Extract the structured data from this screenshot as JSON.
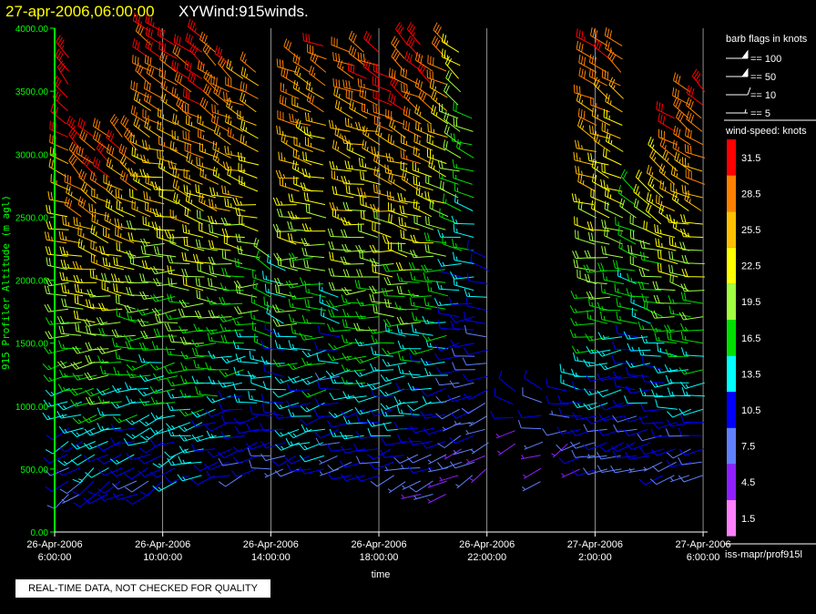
{
  "header": {
    "datetime": "27-apr-2006,06:00:00",
    "product": "XYWind:915winds.",
    "datetime_color": "#ffff00",
    "product_color": "#ffffff"
  },
  "footer": {
    "disclaimer": "REAL-TIME DATA, NOT CHECKED FOR QUALITY",
    "source": "iss-mapr/prof915l"
  },
  "colors": {
    "background": "#000000",
    "axis": "#00ff00",
    "ylabel": "#00ff00",
    "gridline": "#cccccc"
  },
  "chart_data": {
    "type": "wind-barb",
    "xlabel": "time",
    "ylabel": "915 Profiler Altitude (m agl)",
    "ylim": [
      0,
      4000
    ],
    "yticks": [
      "0.00",
      "500.00",
      "1000.00",
      "1500.00",
      "2000.00",
      "2500.00",
      "3000.00",
      "3500.00",
      "4000.00"
    ],
    "xlim": [
      "2006-04-26 06:00",
      "2006-04-27 06:10"
    ],
    "xticks": [
      {
        "date": "26-Apr-2006",
        "time": "6:00:00"
      },
      {
        "date": "26-Apr-2006",
        "time": "10:00:00"
      },
      {
        "date": "26-Apr-2006",
        "time": "14:00:00"
      },
      {
        "date": "26-Apr-2006",
        "time": "18:00:00"
      },
      {
        "date": "26-Apr-2006",
        "time": "22:00:00"
      },
      {
        "date": "27-Apr-2006",
        "time": "2:00:00"
      },
      {
        "date": "27-Apr-2006",
        "time": "6:00:00"
      }
    ],
    "grid": "vertical at time ticks",
    "barb_legend": {
      "title": "barb flags in knots",
      "entries": [
        "== 100",
        "== 50",
        "== 10",
        "== 5"
      ]
    },
    "colorbar": {
      "title": "wind-speed: knots",
      "bands": [
        {
          "label": "31.5",
          "color": "#ff0000"
        },
        {
          "label": "28.5",
          "color": "#ff8000"
        },
        {
          "label": "25.5",
          "color": "#ffc000"
        },
        {
          "label": "22.5",
          "color": "#ffff00"
        },
        {
          "label": "19.5",
          "color": "#a0ff40"
        },
        {
          "label": "16.5",
          "color": "#00e000"
        },
        {
          "label": "13.5",
          "color": "#00ffff"
        },
        {
          "label": "10.5",
          "color": "#0000ff"
        },
        {
          "label": "7.5",
          "color": "#6080ff"
        },
        {
          "label": "4.5",
          "color": "#9020ff"
        },
        {
          "label": "1.5",
          "color": "#ff80ff"
        }
      ]
    },
    "profiles": [
      {
        "t": "2006-04-26 06:30",
        "h0": 300,
        "h1": 3800,
        "dir_lo": 230,
        "dir_hi": 320,
        "spd_lo": 8,
        "spd_hi": 33
      },
      {
        "t": "2006-04-26 07:00",
        "h0": 300,
        "h1": 3150,
        "dir_lo": 230,
        "dir_hi": 320,
        "spd_lo": 9,
        "spd_hi": 32
      },
      {
        "t": "2006-04-26 07:30",
        "h0": 300,
        "h1": 3200,
        "dir_lo": 230,
        "dir_hi": 320,
        "spd_lo": 10,
        "spd_hi": 32
      },
      {
        "t": "2006-04-26 08:00",
        "h0": 300,
        "h1": 3200,
        "dir_lo": 230,
        "dir_hi": 320,
        "spd_lo": 11,
        "spd_hi": 31
      },
      {
        "t": "2006-04-26 08:30",
        "h0": 300,
        "h1": 3200,
        "dir_lo": 240,
        "dir_hi": 315,
        "spd_lo": 10,
        "spd_hi": 30
      },
      {
        "t": "2006-04-26 09:00",
        "h0": 300,
        "h1": 3200,
        "dir_lo": 240,
        "dir_hi": 315,
        "spd_lo": 9,
        "spd_hi": 30
      },
      {
        "t": "2006-04-26 09:30",
        "h0": 300,
        "h1": 4000,
        "dir_lo": 240,
        "dir_hi": 310,
        "spd_lo": 9,
        "spd_hi": 31
      },
      {
        "t": "2006-04-26 10:00",
        "h0": 400,
        "h1": 4000,
        "dir_lo": 240,
        "dir_hi": 310,
        "spd_lo": 10,
        "spd_hi": 32
      },
      {
        "t": "2006-04-26 10:30",
        "h0": 400,
        "h1": 3900,
        "dir_lo": 240,
        "dir_hi": 310,
        "spd_lo": 11,
        "spd_hi": 31
      },
      {
        "t": "2006-04-26 11:00",
        "h0": 450,
        "h1": 3900,
        "dir_lo": 250,
        "dir_hi": 310,
        "spd_lo": 12,
        "spd_hi": 31
      },
      {
        "t": "2006-04-26 11:30",
        "h0": 450,
        "h1": 3950,
        "dir_lo": 250,
        "dir_hi": 310,
        "spd_lo": 12,
        "spd_hi": 32
      },
      {
        "t": "2006-04-26 12:00",
        "h0": 450,
        "h1": 3900,
        "dir_lo": 250,
        "dir_hi": 310,
        "spd_lo": 11,
        "spd_hi": 31
      },
      {
        "t": "2006-04-26 12:30",
        "h0": 450,
        "h1": 3750,
        "dir_lo": 250,
        "dir_hi": 310,
        "spd_lo": 10,
        "spd_hi": 30
      },
      {
        "t": "2006-04-26 13:00",
        "h0": 450,
        "h1": 3700,
        "dir_lo": 250,
        "dir_hi": 300,
        "spd_lo": 10,
        "spd_hi": 29
      },
      {
        "t": "2006-04-26 13:30",
        "h0": 500,
        "h1": 3700,
        "dir_lo": 250,
        "dir_hi": 300,
        "spd_lo": 10,
        "spd_hi": 28
      },
      {
        "t": "2006-04-26 14:00",
        "h0": 500,
        "h1": 2200,
        "dir_lo": 260,
        "dir_hi": 300,
        "spd_lo": 9,
        "spd_hi": 18
      },
      {
        "t": "2006-04-26 14:30",
        "h0": 500,
        "h1": 2150,
        "dir_lo": 260,
        "dir_hi": 300,
        "spd_lo": 9,
        "spd_hi": 15
      },
      {
        "t": "2006-04-26 15:00",
        "h0": 500,
        "h1": 3800,
        "dir_lo": 250,
        "dir_hi": 300,
        "spd_lo": 10,
        "spd_hi": 30
      },
      {
        "t": "2006-04-26 15:30",
        "h0": 500,
        "h1": 3700,
        "dir_lo": 250,
        "dir_hi": 300,
        "spd_lo": 10,
        "spd_hi": 28
      },
      {
        "t": "2006-04-26 16:00",
        "h0": 500,
        "h1": 3950,
        "dir_lo": 250,
        "dir_hi": 300,
        "spd_lo": 10,
        "spd_hi": 30
      },
      {
        "t": "2006-04-26 16:30",
        "h0": 500,
        "h1": 1900,
        "dir_lo": 240,
        "dir_hi": 300,
        "spd_lo": 7,
        "spd_hi": 14
      },
      {
        "t": "2006-04-26 17:00",
        "h0": 450,
        "h1": 3900,
        "dir_lo": 250,
        "dir_hi": 300,
        "spd_lo": 9,
        "spd_hi": 31
      },
      {
        "t": "2006-04-26 17:30",
        "h0": 450,
        "h1": 3900,
        "dir_lo": 250,
        "dir_hi": 300,
        "spd_lo": 9,
        "spd_hi": 31
      },
      {
        "t": "2006-04-26 18:00",
        "h0": 450,
        "h1": 3900,
        "dir_lo": 250,
        "dir_hi": 300,
        "spd_lo": 9,
        "spd_hi": 31
      },
      {
        "t": "2006-04-26 18:30",
        "h0": 450,
        "h1": 3700,
        "dir_lo": 250,
        "dir_hi": 300,
        "spd_lo": 9,
        "spd_hi": 31
      },
      {
        "t": "2006-04-26 19:00",
        "h0": 400,
        "h1": 3900,
        "dir_lo": 250,
        "dir_hi": 310,
        "spd_lo": 8,
        "spd_hi": 32
      },
      {
        "t": "2006-04-26 19:30",
        "h0": 300,
        "h1": 3900,
        "dir_lo": 250,
        "dir_hi": 310,
        "spd_lo": 7,
        "spd_hi": 32
      },
      {
        "t": "2006-04-26 20:00",
        "h0": 300,
        "h1": 3750,
        "dir_lo": 240,
        "dir_hi": 310,
        "spd_lo": 6,
        "spd_hi": 30
      },
      {
        "t": "2006-04-26 20:30",
        "h0": 300,
        "h1": 3900,
        "dir_lo": 240,
        "dir_hi": 310,
        "spd_lo": 6,
        "spd_hi": 29
      },
      {
        "t": "2006-04-26 21:00",
        "h0": 450,
        "h1": 3850,
        "dir_lo": 240,
        "dir_hi": 310,
        "spd_lo": 6,
        "spd_hi": 22
      },
      {
        "t": "2006-04-26 21:30",
        "h0": 450,
        "h1": 3300,
        "dir_lo": 240,
        "dir_hi": 300,
        "spd_lo": 6,
        "spd_hi": 18
      },
      {
        "t": "2006-04-26 22:00",
        "h0": 500,
        "h1": 2200,
        "dir_lo": 230,
        "dir_hi": 300,
        "spd_lo": 6,
        "spd_hi": 13
      },
      {
        "t": "2006-04-26 23:00",
        "h0": 700,
        "h1": 1150,
        "dir_lo": 230,
        "dir_hi": 300,
        "spd_lo": 5,
        "spd_hi": 11
      },
      {
        "t": "2006-04-27 00:00",
        "h0": 400,
        "h1": 1200,
        "dir_lo": 230,
        "dir_hi": 300,
        "spd_lo": 5,
        "spd_hi": 11
      },
      {
        "t": "2006-04-27 01:00",
        "h0": 700,
        "h1": 1150,
        "dir_lo": 240,
        "dir_hi": 300,
        "spd_lo": 6,
        "spd_hi": 12
      },
      {
        "t": "2006-04-27 01:30",
        "h0": 500,
        "h1": 1300,
        "dir_lo": 240,
        "dir_hi": 300,
        "spd_lo": 7,
        "spd_hi": 14
      },
      {
        "t": "2006-04-27 02:00",
        "h0": 500,
        "h1": 3950,
        "dir_lo": 250,
        "dir_hi": 310,
        "spd_lo": 8,
        "spd_hi": 32
      },
      {
        "t": "2006-04-27 02:30",
        "h0": 500,
        "h1": 3950,
        "dir_lo": 250,
        "dir_hi": 310,
        "spd_lo": 8,
        "spd_hi": 31
      },
      {
        "t": "2006-04-27 03:00",
        "h0": 500,
        "h1": 3950,
        "dir_lo": 250,
        "dir_hi": 310,
        "spd_lo": 8,
        "spd_hi": 30
      },
      {
        "t": "2006-04-27 03:30",
        "h0": 500,
        "h1": 2800,
        "dir_lo": 250,
        "dir_hi": 310,
        "spd_lo": 8,
        "spd_hi": 20
      },
      {
        "t": "2006-04-27 04:00",
        "h0": 500,
        "h1": 2800,
        "dir_lo": 250,
        "dir_hi": 310,
        "spd_lo": 8,
        "spd_hi": 22
      },
      {
        "t": "2006-04-27 04:30",
        "h0": 450,
        "h1": 3000,
        "dir_lo": 250,
        "dir_hi": 310,
        "spd_lo": 8,
        "spd_hi": 25
      },
      {
        "t": "2006-04-27 05:00",
        "h0": 450,
        "h1": 3300,
        "dir_lo": 250,
        "dir_hi": 310,
        "spd_lo": 8,
        "spd_hi": 30
      },
      {
        "t": "2006-04-27 05:30",
        "h0": 450,
        "h1": 3500,
        "dir_lo": 250,
        "dir_hi": 310,
        "spd_lo": 8,
        "spd_hi": 31
      },
      {
        "t": "2006-04-27 06:00",
        "h0": 450,
        "h1": 3550,
        "dir_lo": 250,
        "dir_hi": 310,
        "spd_lo": 8,
        "spd_hi": 32
      }
    ]
  }
}
